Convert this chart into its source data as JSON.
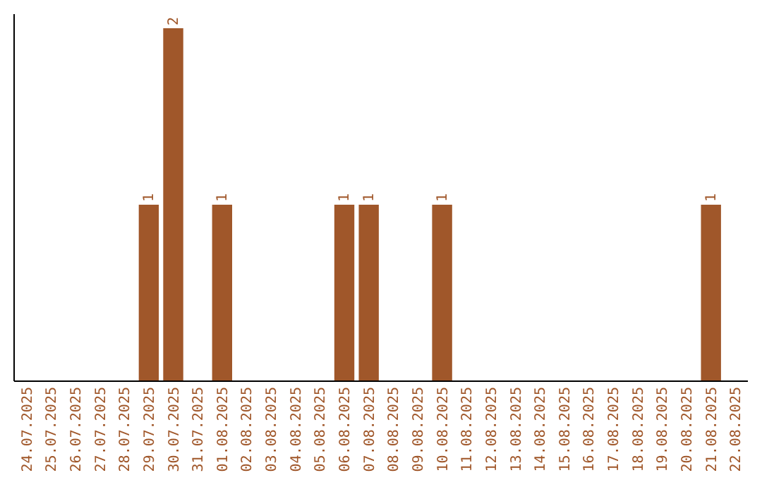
{
  "chart_data": {
    "type": "bar",
    "categories": [
      "24.07.2025",
      "25.07.2025",
      "26.07.2025",
      "27.07.2025",
      "28.07.2025",
      "29.07.2025",
      "30.07.2025",
      "31.07.2025",
      "01.08.2025",
      "02.08.2025",
      "03.08.2025",
      "04.08.2025",
      "05.08.2025",
      "06.08.2025",
      "07.08.2025",
      "08.08.2025",
      "09.08.2025",
      "10.08.2025",
      "11.08.2025",
      "12.08.2025",
      "13.08.2025",
      "14.08.2025",
      "15.08.2025",
      "16.08.2025",
      "17.08.2025",
      "18.08.2025",
      "19.08.2025",
      "20.08.2025",
      "21.08.2025",
      "22.08.2025"
    ],
    "values": [
      0,
      0,
      0,
      0,
      0,
      1,
      2,
      0,
      1,
      0,
      0,
      0,
      0,
      1,
      1,
      0,
      0,
      1,
      0,
      0,
      0,
      0,
      0,
      0,
      0,
      0,
      0,
      0,
      1,
      0
    ],
    "value_labels": [
      null,
      null,
      null,
      null,
      null,
      "1",
      "2",
      null,
      "1",
      null,
      null,
      null,
      null,
      "1",
      "1",
      null,
      null,
      "1",
      null,
      null,
      null,
      null,
      null,
      null,
      null,
      null,
      null,
      null,
      "1",
      null
    ],
    "color": "#a0572a"
  }
}
